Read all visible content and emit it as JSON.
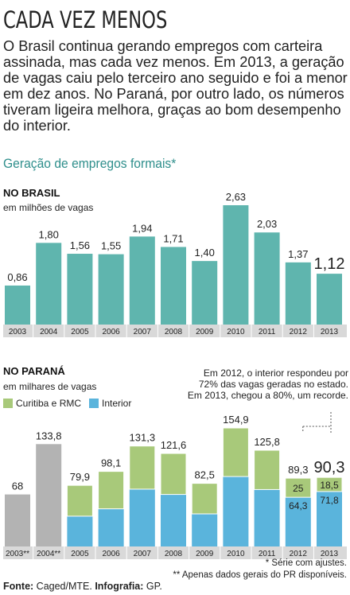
{
  "headline": "CADA VEZ MENOS",
  "intro": "O Brasil continua gerando empregos com carteira assinada, mas cada vez menos. Em 2013, a geração de vagas caiu pelo terceiro ano seguido e foi a menor em dez anos. No Paraná, por outro lado, os números tiveram ligeira melhora, graças ao bom desempenho do interior.",
  "subtitle": "Geração de empregos formais*",
  "colors": {
    "teal": "#5fb5ae",
    "green": "#a8c97a",
    "blue": "#5ab4dc",
    "gray": "#b3b3b3",
    "tick_bg": "#d9d9d9"
  },
  "chart_data": [
    {
      "type": "bar",
      "title": "NO BRASIL",
      "ylabel": "em milhões de vagas",
      "categories": [
        "2003",
        "2004",
        "2005",
        "2006",
        "2007",
        "2008",
        "2009",
        "2010",
        "2011",
        "2012",
        "2013"
      ],
      "values": [
        0.86,
        1.8,
        1.56,
        1.55,
        1.94,
        1.71,
        1.4,
        2.63,
        2.03,
        1.37,
        1.12
      ],
      "value_labels": [
        "0,86",
        "1,80",
        "1,56",
        "1,55",
        "1,94",
        "1,71",
        "1,40",
        "2,63",
        "2,03",
        "1,37",
        "1,12"
      ],
      "ylim": [
        0,
        2.63
      ]
    },
    {
      "type": "bar",
      "title": "NO PARANÁ",
      "ylabel": "em milhares de vagas",
      "categories": [
        "2003**",
        "2004**",
        "2005",
        "2006",
        "2007",
        "2008",
        "2009",
        "2010",
        "2011",
        "2012",
        "2013"
      ],
      "totals": [
        68,
        133.8,
        79.9,
        98.1,
        131.3,
        121.6,
        82.5,
        154.9,
        125.8,
        89.3,
        90.3
      ],
      "total_labels": [
        "68",
        "133,8",
        "79,9",
        "98,1",
        "131,3",
        "121,6",
        "82,5",
        "154,9",
        "125,8",
        "89,3",
        "90,3"
      ],
      "series": [
        {
          "name": "Interior",
          "values": [
            null,
            null,
            39.6,
            49.2,
            74.9,
            68.0,
            42.6,
            91.4,
            74.4,
            64.3,
            71.8
          ],
          "value_labels": [
            "",
            "",
            "",
            "",
            "",
            "",
            "",
            "",
            "",
            "64,3",
            "71,8"
          ]
        },
        {
          "name": "Curitiba e RMC",
          "values": [
            null,
            null,
            40.3,
            48.9,
            56.4,
            53.6,
            39.9,
            63.5,
            51.4,
            25,
            18.5
          ],
          "value_labels": [
            "",
            "",
            "",
            "",
            "",
            "",
            "",
            "",
            "",
            "25",
            "18,5"
          ]
        }
      ],
      "legend": [
        "Curitiba e RMC",
        "Interior"
      ],
      "annotation": "Em 2012, o interior respondeu por 72% das vagas geradas no estado. Em 2013, chegou a 80%, um recorde.",
      "ylim": [
        0,
        154.9
      ]
    }
  ],
  "footnotes": {
    "note1": "* Série com ajustes.",
    "note2": "** Apenas dados gerais do PR disponíveis."
  },
  "source": {
    "label1": "Fonte:",
    "text1": " Caged/MTE. ",
    "label2": "Infografia:",
    "text2": " GP."
  }
}
